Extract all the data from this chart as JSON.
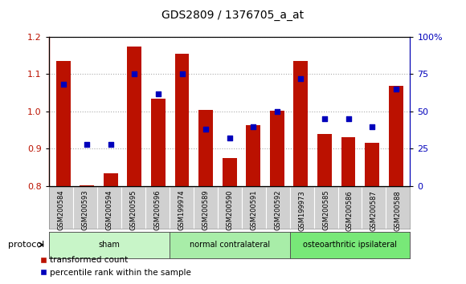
{
  "title": "GDS2809 / 1376705_a_at",
  "samples": [
    "GSM200584",
    "GSM200593",
    "GSM200594",
    "GSM200595",
    "GSM200596",
    "GSM199974",
    "GSM200589",
    "GSM200590",
    "GSM200591",
    "GSM200592",
    "GSM199973",
    "GSM200585",
    "GSM200586",
    "GSM200587",
    "GSM200588"
  ],
  "bar_values": [
    1.135,
    0.802,
    0.835,
    1.175,
    1.035,
    1.155,
    1.005,
    0.875,
    0.963,
    1.002,
    1.135,
    0.94,
    0.93,
    0.915,
    1.068
  ],
  "dot_values": [
    68,
    28,
    28,
    75,
    62,
    75,
    38,
    32,
    40,
    50,
    72,
    45,
    45,
    40,
    65
  ],
  "groups": [
    {
      "label": "sham",
      "start": 0,
      "end": 5,
      "color": "#c8f5c8"
    },
    {
      "label": "normal contralateral",
      "start": 5,
      "end": 10,
      "color": "#a8eda8"
    },
    {
      "label": "osteoarthritic ipsilateral",
      "start": 10,
      "end": 15,
      "color": "#78e878"
    }
  ],
  "bar_color": "#bb1100",
  "dot_color": "#0000bb",
  "ylim_left": [
    0.8,
    1.2
  ],
  "ylim_right": [
    0,
    100
  ],
  "yticks_left": [
    0.8,
    0.9,
    1.0,
    1.1,
    1.2
  ],
  "yticks_right": [
    0,
    25,
    50,
    75,
    100
  ],
  "yticklabels_right": [
    "0",
    "25",
    "50",
    "75",
    "100%"
  ],
  "background_color": "#ffffff",
  "grid_color": "#aaaaaa",
  "protocol_label": "protocol"
}
